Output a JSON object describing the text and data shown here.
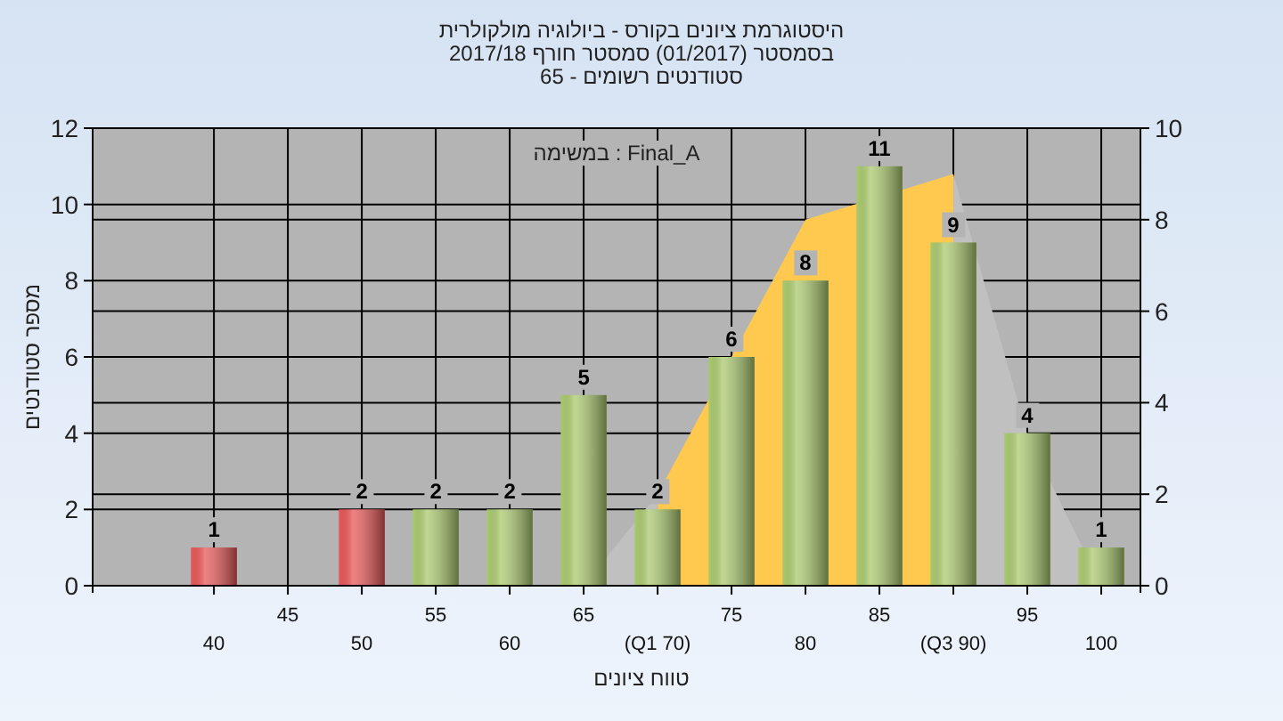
{
  "chart_data": {
    "type": "bar",
    "title": "היסטוגרמת ציונים בקורס - ביולוגיה מולקולרית",
    "subtitle": "בסמסטר  (01/2017)  סמסטר חורף 2017/18\nסטודנטים רשומים - 65",
    "xlabel": "טווח ציונים",
    "ylabel": "מספר סטודנטים",
    "annotations": [
      "במשימה : Final_A"
    ],
    "categories": [
      "40",
      "45",
      "50",
      "55",
      "60",
      "65",
      "(Q1 70)",
      "75",
      "80",
      "85",
      "(Q3 90)",
      "95",
      "100"
    ],
    "series": [
      {
        "type": "area",
        "axis": "y2",
        "color": "#c0c0c0",
        "values": [
          null,
          null,
          null,
          null,
          null,
          0,
          2,
          null,
          null,
          null,
          null,
          null,
          null
        ]
      },
      {
        "type": "area",
        "axis": "y2",
        "color": "#c0c0c0",
        "values": [
          null,
          null,
          null,
          null,
          null,
          null,
          null,
          null,
          null,
          null,
          9,
          3.3,
          0
        ]
      },
      {
        "type": "area",
        "axis": "y2",
        "color": "#ffc94f",
        "values": [
          null,
          null,
          null,
          null,
          null,
          null,
          2,
          5,
          8,
          null,
          9,
          null,
          null
        ]
      },
      {
        "values": [
          1,
          0,
          2,
          2,
          2,
          5,
          2,
          6,
          8,
          11,
          9,
          4,
          1
        ],
        "colors": [
          "#e02020",
          "#e02020",
          "#e02020",
          "#8fb83f",
          "#8fb83f",
          "#8fb83f",
          "#8fb83f",
          "#8fb83f",
          "#8fb83f",
          "#8fb83f",
          "#8fb83f",
          "#8fb83f",
          "#8fb83f"
        ],
        "value_labels": [
          "1",
          null,
          "2",
          "2",
          "2",
          "5",
          "2",
          "6",
          "8",
          "11",
          "9",
          "4",
          "1"
        ]
      }
    ],
    "ylim": [
      0,
      12
    ],
    "yticks": [
      0,
      2,
      4,
      6,
      8,
      10,
      12
    ],
    "y2lim": [
      0,
      10
    ],
    "y2ticks": [
      0,
      2,
      4,
      6,
      8,
      10
    ],
    "grid": true
  }
}
